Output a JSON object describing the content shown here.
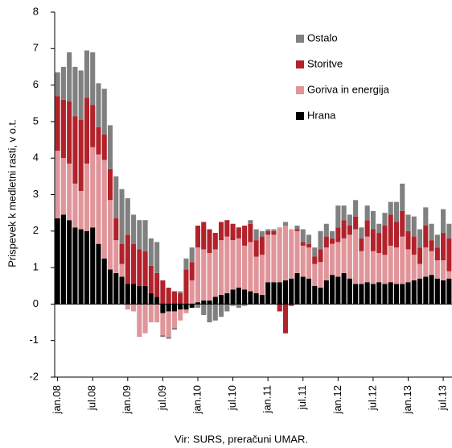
{
  "chart_data": {
    "type": "stacked_bar",
    "y_label": "Prispevek k medletni rasti, v o.t.",
    "source": "Vir: SURS, preračuni UMAR.",
    "categories": [
      "jan.08",
      null,
      null,
      null,
      null,
      null,
      "jul.08",
      null,
      null,
      null,
      null,
      null,
      "jan.09",
      null,
      null,
      null,
      null,
      null,
      "jul.09",
      null,
      null,
      null,
      null,
      null,
      "jan.10",
      null,
      null,
      null,
      null,
      null,
      "jul.10",
      null,
      null,
      null,
      null,
      null,
      "jan.11",
      null,
      null,
      null,
      null,
      null,
      "jul.11",
      null,
      null,
      null,
      null,
      null,
      "jan.12",
      null,
      null,
      null,
      null,
      null,
      "jul.12",
      null,
      null,
      null,
      null,
      null,
      "jan.13",
      null,
      null,
      null,
      null,
      null,
      "jul.13",
      null
    ],
    "series": [
      {
        "name": "Hrana",
        "color": "#000000",
        "values": [
          2.35,
          2.45,
          2.3,
          2.1,
          2.05,
          2.0,
          2.1,
          1.65,
          1.25,
          0.95,
          0.85,
          0.75,
          0.55,
          0.55,
          0.5,
          0.5,
          0.3,
          0.2,
          -0.25,
          -0.2,
          -0.2,
          -0.15,
          -0.15,
          -0.1,
          0.05,
          0.1,
          0.1,
          0.2,
          0.25,
          0.3,
          0.4,
          0.45,
          0.4,
          0.35,
          0.3,
          0.25,
          0.6,
          0.6,
          0.6,
          0.65,
          0.7,
          0.85,
          0.75,
          0.7,
          0.5,
          0.45,
          0.65,
          0.8,
          0.75,
          0.85,
          0.7,
          0.55,
          0.55,
          0.6,
          0.55,
          0.6,
          0.55,
          0.6,
          0.55,
          0.55,
          0.6,
          0.65,
          0.7,
          0.75,
          0.8,
          0.7,
          0.65,
          0.7
        ]
      },
      {
        "name": "Goriva in energija",
        "color": "#e0959a",
        "values": [
          1.85,
          1.55,
          1.55,
          1.2,
          1.05,
          1.85,
          2.2,
          2.45,
          2.7,
          1.9,
          0.9,
          0.35,
          -0.15,
          -0.2,
          -0.9,
          -0.8,
          -0.5,
          -0.5,
          -0.6,
          -0.7,
          -0.45,
          -0.3,
          -0.1,
          0.65,
          1.5,
          1.4,
          1.3,
          1.3,
          1.5,
          1.55,
          1.35,
          1.35,
          1.2,
          1.35,
          1.0,
          1.1,
          1.3,
          1.3,
          1.5,
          1.5,
          1.35,
          1.15,
          0.85,
          0.85,
          0.6,
          0.7,
          0.9,
          0.85,
          0.95,
          0.95,
          1.2,
          1.5,
          0.9,
          1.25,
          0.9,
          0.8,
          0.8,
          1.0,
          1.0,
          1.3,
          0.9,
          0.7,
          0.4,
          0.8,
          0.65,
          0.5,
          0.55,
          0.2
        ]
      },
      {
        "name": "Storitve",
        "color": "#b2222a",
        "values": [
          1.5,
          1.6,
          1.7,
          1.85,
          1.95,
          1.8,
          1.15,
          0.75,
          0.7,
          0.85,
          0.6,
          0.55,
          1.35,
          1.1,
          1.0,
          0.95,
          0.75,
          0.65,
          0.65,
          0.45,
          0.35,
          0.3,
          0.95,
          0.5,
          0.6,
          0.75,
          0.65,
          0.45,
          0.5,
          0.45,
          0.45,
          0.3,
          0.55,
          0.5,
          0.45,
          0.5,
          0.1,
          0.1,
          -0.2,
          -0.8,
          -0.05,
          0.05,
          0.1,
          0.1,
          0.2,
          0.35,
          0.3,
          0.15,
          0.4,
          0.5,
          0.25,
          0.35,
          0.35,
          0.45,
          0.6,
          0.55,
          0.8,
          0.85,
          0.7,
          0.7,
          0.5,
          0.5,
          0.45,
          0.6,
          0.3,
          0.35,
          0.75,
          0.9
        ]
      },
      {
        "name": "Ostalo",
        "color": "#808080",
        "values": [
          0.65,
          0.9,
          1.35,
          1.35,
          1.35,
          1.3,
          1.45,
          1.2,
          1.25,
          1.2,
          1.15,
          1.5,
          1.0,
          0.8,
          0.8,
          0.85,
          0.75,
          0.85,
          -0.05,
          -0.05,
          -0.05,
          0.05,
          0.3,
          0.4,
          -0.1,
          -0.3,
          -0.5,
          -0.45,
          -0.35,
          -0.2,
          -0.05,
          -0.1,
          -0.05,
          0.1,
          0.3,
          0.15,
          0.05,
          0.05,
          0.0,
          0.1,
          0.0,
          0.1,
          0.35,
          0.25,
          0.25,
          0.5,
          0.35,
          0.2,
          0.6,
          0.4,
          0.3,
          0.45,
          0.3,
          0.4,
          0.5,
          0.25,
          0.35,
          0.35,
          0.55,
          0.75,
          0.45,
          0.55,
          0.5,
          0.5,
          0.45,
          0.35,
          0.65,
          0.4
        ]
      }
    ],
    "ylim": [
      -2,
      8
    ],
    "yticks": [
      -2,
      -1,
      0,
      1,
      2,
      3,
      4,
      5,
      6,
      7,
      8
    ],
    "grid": false,
    "legend": "upper right"
  }
}
